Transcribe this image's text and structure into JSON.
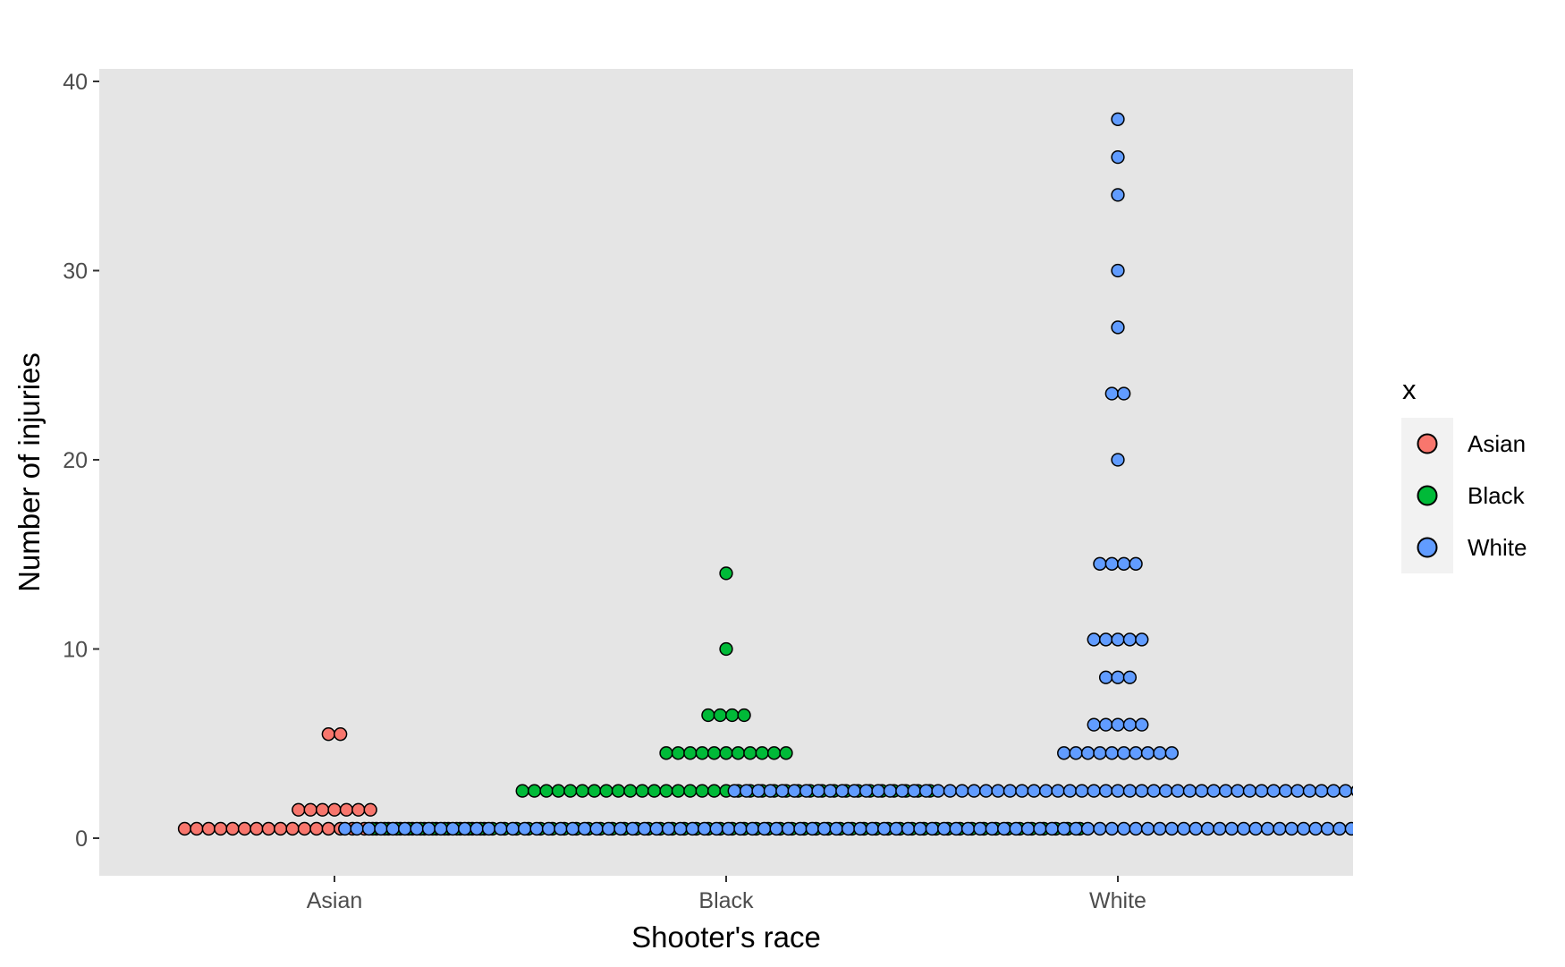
{
  "chart_data": {
    "type": "dotplot",
    "xlabel": "Shooter's race",
    "ylabel": "Number of injuries",
    "categories": [
      "Asian",
      "Black",
      "White"
    ],
    "ylim": [
      -2,
      42
    ],
    "yticks": [
      0,
      10,
      20,
      30,
      40
    ],
    "grid": false,
    "legend": {
      "title": "x",
      "position": "right",
      "entries": [
        {
          "label": "Asian",
          "color": "#F8766D"
        },
        {
          "label": "Black",
          "color": "#00BA38"
        },
        {
          "label": "White",
          "color": "#619CFF"
        }
      ]
    },
    "colors": {
      "Asian": "#F8766D",
      "Black": "#00BA38",
      "White": "#619CFF",
      "panel_background": "#E5E5E5",
      "legend_key_background": "#F2F2F2",
      "dot_outline": "#000000"
    },
    "series": [
      {
        "category": "Asian",
        "bins": [
          {
            "y": 0.5,
            "count": 26
          },
          {
            "y": 1.5,
            "count": 7
          },
          {
            "y": 5.5,
            "count": 2
          }
        ]
      },
      {
        "category": "Black",
        "bins": [
          {
            "y": 0.5,
            "count": 60
          },
          {
            "y": 2.5,
            "count": 35
          },
          {
            "y": 4.5,
            "count": 11
          },
          {
            "y": 6.5,
            "count": 4
          },
          {
            "y": 10,
            "count": 1
          },
          {
            "y": 14,
            "count": 1
          }
        ]
      },
      {
        "category": "White",
        "bins": [
          {
            "y": 0.5,
            "count": 130
          },
          {
            "y": 2.5,
            "count": 65
          },
          {
            "y": 4.5,
            "count": 10
          },
          {
            "y": 6,
            "count": 5
          },
          {
            "y": 8.5,
            "count": 3
          },
          {
            "y": 10.5,
            "count": 5
          },
          {
            "y": 14.5,
            "count": 4
          },
          {
            "y": 20,
            "count": 1
          },
          {
            "y": 23.5,
            "count": 2
          },
          {
            "y": 27,
            "count": 1
          },
          {
            "y": 30,
            "count": 1
          },
          {
            "y": 34,
            "count": 1
          },
          {
            "y": 36,
            "count": 1
          },
          {
            "y": 38,
            "count": 1
          }
        ]
      }
    ]
  }
}
